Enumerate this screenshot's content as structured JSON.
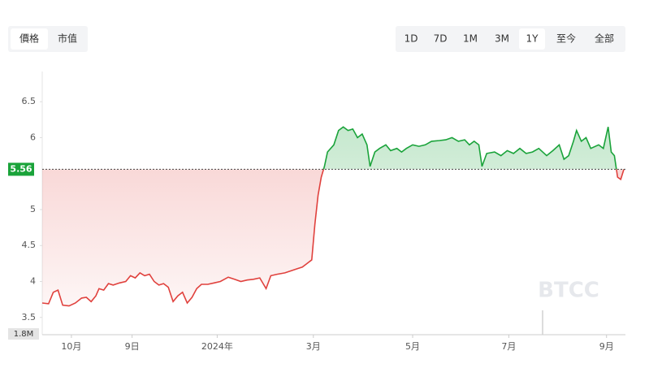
{
  "tabs": [
    "價格",
    "市值"
  ],
  "ranges": [
    "1D",
    "7D",
    "1M",
    "3M",
    "1Y",
    "至今",
    "全部"
  ],
  "active_range": "1Y",
  "watermark": "BTCC",
  "chart_data": {
    "type": "line",
    "x": [
      0,
      4,
      7,
      10,
      13,
      17,
      21,
      25,
      28,
      31,
      34,
      36,
      39,
      42,
      45,
      49,
      53,
      56,
      59,
      62,
      65,
      68,
      71,
      74,
      77,
      80,
      83,
      86,
      89,
      92,
      95,
      98,
      101,
      105,
      109,
      113,
      118,
      122,
      126,
      130,
      134,
      138,
      142,
      145,
      149,
      154,
      158,
      162,
      165,
      168,
      171,
      173,
      175,
      177,
      179,
      181,
      185,
      188,
      191,
      194,
      197,
      200,
      203,
      206,
      208,
      211,
      214,
      218,
      221,
      225,
      228,
      231,
      235,
      239,
      243,
      247,
      252,
      256,
      260,
      264,
      268,
      271,
      274,
      277,
      279,
      282,
      287,
      291,
      295,
      299,
      303,
      307,
      311,
      315,
      320,
      324,
      328,
      331,
      334,
      337,
      339,
      342,
      345,
      348,
      353,
      356,
      359,
      361,
      363,
      365,
      367,
      369
    ],
    "series": [
      {
        "name": "價格",
        "values": [
          3.7,
          3.69,
          3.85,
          3.88,
          3.67,
          3.66,
          3.7,
          3.77,
          3.78,
          3.72,
          3.8,
          3.9,
          3.88,
          3.97,
          3.95,
          3.98,
          4.0,
          4.08,
          4.05,
          4.12,
          4.08,
          4.1,
          4.0,
          3.95,
          3.97,
          3.92,
          3.72,
          3.8,
          3.85,
          3.7,
          3.78,
          3.9,
          3.96,
          3.96,
          3.98,
          4.0,
          4.06,
          4.03,
          4.0,
          4.02,
          4.03,
          4.05,
          3.9,
          4.08,
          4.1,
          4.12,
          4.15,
          4.18,
          4.2,
          4.25,
          4.3,
          4.8,
          5.2,
          5.45,
          5.6,
          5.8,
          5.9,
          6.1,
          6.15,
          6.1,
          6.12,
          6.0,
          6.05,
          5.9,
          5.6,
          5.8,
          5.85,
          5.9,
          5.82,
          5.85,
          5.8,
          5.85,
          5.9,
          5.88,
          5.9,
          5.95,
          5.96,
          5.97,
          6.0,
          5.95,
          5.97,
          5.9,
          5.95,
          5.9,
          5.6,
          5.78,
          5.8,
          5.75,
          5.82,
          5.78,
          5.85,
          5.78,
          5.8,
          5.85,
          5.75,
          5.82,
          5.9,
          5.7,
          5.75,
          5.95,
          6.1,
          5.95,
          6.0,
          5.85,
          5.9,
          5.85,
          6.15,
          5.8,
          5.75,
          5.45,
          5.42,
          5.56
        ]
      }
    ],
    "up_color": "#1aa33a",
    "down_color": "#e0413d",
    "current_price": 5.56,
    "volume_label": "1.8M",
    "xlim": [
      0,
      370
    ],
    "xticks": [
      {
        "value": 18.5,
        "label": "10月"
      },
      {
        "value": 57,
        "label": "9日"
      },
      {
        "value": 111,
        "label": "2024年"
      },
      {
        "value": 172,
        "label": "3月"
      },
      {
        "value": 235,
        "label": "5月"
      },
      {
        "value": 296,
        "label": "7月"
      },
      {
        "value": 358,
        "label": "9月"
      }
    ],
    "ylim": [
      3.26,
      6.92
    ],
    "yticks": [
      3.5,
      4,
      4.5,
      5,
      6,
      6.5
    ]
  }
}
